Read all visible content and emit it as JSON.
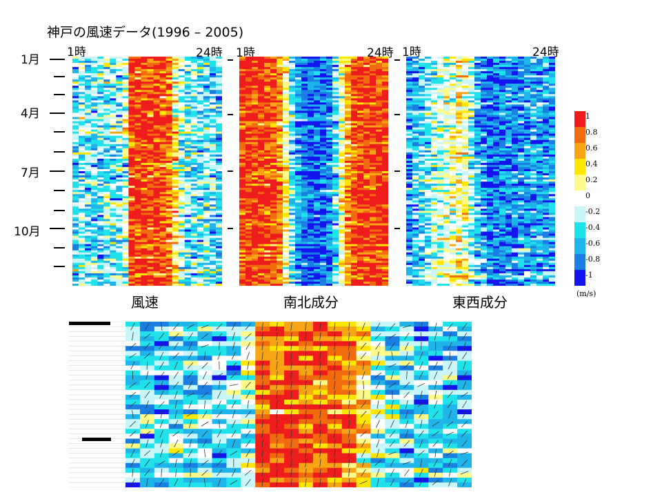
{
  "title": "神戸の風速データ(1996 – 2005)",
  "month_labels": [
    "1月",
    "4月",
    "7月",
    "10月"
  ],
  "hour_start_label": "1時",
  "hour_end_label": "24時",
  "colorbar": {
    "ticks": [
      "1",
      "0.8",
      "0.6",
      "0.4",
      "0.2",
      "0",
      "-0.2",
      "-0.4",
      "-0.6",
      "-0.8",
      "-1"
    ],
    "unit": "(m/s)",
    "colors": [
      "#ee1c1c",
      "#f26b0f",
      "#f7a515",
      "#ffe600",
      "#fffb8a",
      "#ffffff",
      "#c9f6f8",
      "#20e2ea",
      "#1fb4ea",
      "#1a7fe3",
      "#1414ee"
    ]
  },
  "chart_data": [
    {
      "type": "heatmap",
      "title": "風速",
      "xlabel": "",
      "ylabel": "",
      "x_range": [
        "1時",
        "24時"
      ],
      "y_range": [
        "1月",
        "12月"
      ],
      "value_range": [
        -1,
        1
      ],
      "profile_by_hour": [
        -0.35,
        -0.3,
        -0.35,
        -0.3,
        -0.35,
        -0.3,
        -0.35,
        -0.3,
        -0.1,
        0.9,
        0.95,
        0.95,
        0.9,
        0.95,
        0.9,
        0.75,
        0.3,
        -0.1,
        -0.3,
        -0.3,
        -0.35,
        -0.3,
        -0.35,
        -0.4
      ]
    },
    {
      "type": "heatmap",
      "title": "南北成分",
      "xlabel": "",
      "ylabel": "",
      "x_range": [
        "1時",
        "24時"
      ],
      "y_range": [
        "1月",
        "12月"
      ],
      "value_range": [
        -1,
        1
      ],
      "profile_by_hour": [
        0.95,
        0.95,
        0.95,
        0.95,
        0.9,
        0.9,
        0.7,
        0.2,
        -0.3,
        -0.6,
        -0.8,
        -0.85,
        -0.85,
        -0.8,
        -0.7,
        -0.4,
        0.1,
        0.6,
        0.9,
        0.95,
        0.95,
        0.95,
        0.95,
        0.95
      ]
    },
    {
      "type": "heatmap",
      "title": "東西成分",
      "xlabel": "",
      "ylabel": "",
      "x_range": [
        "1時",
        "24時"
      ],
      "y_range": [
        "1月",
        "12月"
      ],
      "value_range": [
        -1,
        1
      ],
      "profile_by_hour": [
        -0.6,
        -0.5,
        -0.4,
        -0.3,
        -0.2,
        -0.1,
        0.0,
        0.1,
        0.2,
        0.1,
        -0.2,
        -0.5,
        -0.7,
        -0.8,
        -0.8,
        -0.75,
        -0.7,
        -0.7,
        -0.65,
        -0.6,
        -0.6,
        -0.6,
        -0.6,
        -0.65
      ]
    },
    {
      "type": "heatmap",
      "title": "",
      "xlabel": "",
      "ylabel": "",
      "description_hours": 24,
      "value_range": [
        -1,
        1
      ],
      "profile_by_hour": [
        -0.35,
        -0.3,
        -0.35,
        -0.3,
        -0.35,
        -0.3,
        -0.35,
        -0.3,
        -0.1,
        0.9,
        0.95,
        0.95,
        0.9,
        0.95,
        0.9,
        0.75,
        0.3,
        -0.1,
        -0.3,
        -0.3,
        -0.35,
        -0.3,
        -0.35,
        -0.4
      ]
    }
  ]
}
